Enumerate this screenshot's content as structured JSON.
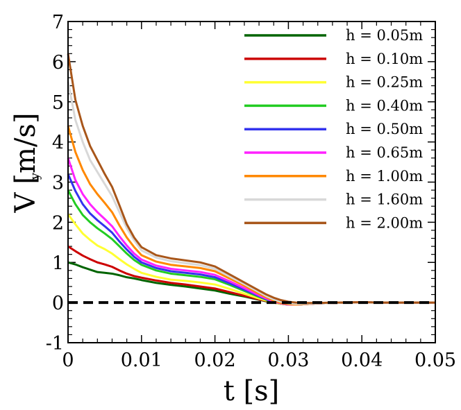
{
  "chart_data": {
    "type": "line",
    "title": "",
    "xlabel": "t [s]",
    "ylabel": {
      "main": "V",
      "subscript": "y",
      "unit": "[m/s]"
    },
    "xlim": [
      0,
      0.05
    ],
    "ylim": [
      -1,
      7
    ],
    "xticks": [
      0,
      0.01,
      0.02,
      0.03,
      0.04,
      0.05
    ],
    "xtick_labels": [
      "0",
      "0.01",
      "0.02",
      "0.03",
      "0.04",
      "0.05"
    ],
    "yticks": [
      -1,
      0,
      1,
      2,
      3,
      4,
      5,
      6,
      7
    ],
    "ytick_labels": [
      "-1",
      "0",
      "1",
      "2",
      "3",
      "4",
      "5",
      "6",
      "7"
    ],
    "grid": false,
    "legend_position": "top-right",
    "reference_line": {
      "y": 0,
      "style": "dashed",
      "color": "#000000"
    },
    "series": [
      {
        "name": "h = 0.05m",
        "color": "#006400",
        "x": [
          0,
          0.001,
          0.002,
          0.003,
          0.004,
          0.005,
          0.006,
          0.007,
          0.008,
          0.009,
          0.01,
          0.012,
          0.014,
          0.016,
          0.018,
          0.02,
          0.022,
          0.024,
          0.026,
          0.027,
          0.028,
          0.029,
          0.03,
          0.031,
          0.032,
          0.034,
          0.036,
          0.038,
          0.04,
          0.042,
          0.044,
          0.046,
          0.048,
          0.05
        ],
        "y": [
          1.0,
          0.95,
          0.88,
          0.82,
          0.76,
          0.74,
          0.72,
          0.68,
          0.63,
          0.6,
          0.56,
          0.49,
          0.44,
          0.4,
          0.35,
          0.3,
          0.22,
          0.15,
          0.07,
          0.03,
          0.0,
          -0.03,
          -0.05,
          -0.05,
          -0.04,
          -0.02,
          -0.01,
          0.0,
          0.01,
          0.0,
          0.0,
          0.0,
          0.0,
          0.0
        ]
      },
      {
        "name": "h = 0.10m",
        "color": "#cc0000",
        "x": [
          0,
          0.001,
          0.002,
          0.003,
          0.004,
          0.005,
          0.006,
          0.007,
          0.008,
          0.009,
          0.01,
          0.012,
          0.014,
          0.016,
          0.018,
          0.02,
          0.022,
          0.024,
          0.026,
          0.027,
          0.028,
          0.029,
          0.03,
          0.031,
          0.032,
          0.034,
          0.036,
          0.038,
          0.04,
          0.042,
          0.044,
          0.046,
          0.048,
          0.05
        ],
        "y": [
          1.4,
          1.28,
          1.17,
          1.08,
          1.0,
          0.95,
          0.89,
          0.8,
          0.72,
          0.66,
          0.62,
          0.55,
          0.49,
          0.45,
          0.4,
          0.35,
          0.26,
          0.17,
          0.08,
          0.04,
          0.0,
          -0.03,
          -0.05,
          -0.05,
          -0.04,
          -0.02,
          -0.01,
          0.0,
          0.01,
          0.0,
          0.0,
          0.0,
          0.0,
          0.0
        ]
      },
      {
        "name": "h = 0.25m",
        "color": "#ffff33",
        "x": [
          0,
          0.001,
          0.002,
          0.003,
          0.004,
          0.005,
          0.006,
          0.007,
          0.008,
          0.009,
          0.01,
          0.012,
          0.014,
          0.016,
          0.018,
          0.02,
          0.022,
          0.024,
          0.026,
          0.027,
          0.028,
          0.029,
          0.03,
          0.031,
          0.032,
          0.034,
          0.036,
          0.038,
          0.04,
          0.042,
          0.044,
          0.046,
          0.048,
          0.05
        ],
        "y": [
          2.2,
          1.95,
          1.72,
          1.56,
          1.42,
          1.33,
          1.22,
          1.08,
          0.95,
          0.84,
          0.74,
          0.64,
          0.57,
          0.54,
          0.5,
          0.45,
          0.34,
          0.22,
          0.1,
          0.05,
          0.0,
          -0.03,
          -0.05,
          -0.05,
          -0.04,
          -0.02,
          -0.01,
          0.0,
          0.01,
          0.0,
          0.0,
          0.0,
          0.0,
          0.0
        ]
      },
      {
        "name": "h = 0.40m",
        "color": "#22cc22",
        "x": [
          0,
          0.001,
          0.002,
          0.003,
          0.004,
          0.005,
          0.006,
          0.007,
          0.008,
          0.009,
          0.01,
          0.012,
          0.014,
          0.016,
          0.018,
          0.02,
          0.022,
          0.024,
          0.026,
          0.027,
          0.028,
          0.029,
          0.03,
          0.031,
          0.032,
          0.034,
          0.036,
          0.038,
          0.04,
          0.042,
          0.044,
          0.046,
          0.048,
          0.05
        ],
        "y": [
          2.8,
          2.45,
          2.18,
          2.0,
          1.85,
          1.72,
          1.58,
          1.4,
          1.22,
          1.06,
          0.94,
          0.8,
          0.72,
          0.68,
          0.64,
          0.58,
          0.44,
          0.29,
          0.14,
          0.07,
          0.02,
          -0.02,
          -0.05,
          -0.05,
          -0.04,
          -0.02,
          -0.01,
          0.0,
          0.01,
          0.0,
          0.0,
          0.0,
          0.0,
          0.0
        ]
      },
      {
        "name": "h = 0.50m",
        "color": "#3333ee",
        "x": [
          0,
          0.001,
          0.002,
          0.003,
          0.004,
          0.005,
          0.006,
          0.007,
          0.008,
          0.009,
          0.01,
          0.012,
          0.014,
          0.016,
          0.018,
          0.02,
          0.022,
          0.024,
          0.026,
          0.027,
          0.028,
          0.029,
          0.03,
          0.031,
          0.032,
          0.034,
          0.036,
          0.038,
          0.04,
          0.042,
          0.044,
          0.046,
          0.048,
          0.05
        ],
        "y": [
          3.2,
          2.78,
          2.45,
          2.22,
          2.05,
          1.9,
          1.74,
          1.52,
          1.32,
          1.14,
          1.0,
          0.86,
          0.78,
          0.74,
          0.7,
          0.63,
          0.48,
          0.32,
          0.16,
          0.08,
          0.02,
          -0.02,
          -0.05,
          -0.05,
          -0.04,
          -0.02,
          -0.01,
          0.0,
          0.01,
          0.0,
          0.0,
          0.0,
          0.0,
          0.0
        ]
      },
      {
        "name": "h = 0.65m",
        "color": "#ff22ff",
        "x": [
          0,
          0.001,
          0.002,
          0.003,
          0.004,
          0.005,
          0.006,
          0.007,
          0.008,
          0.009,
          0.01,
          0.012,
          0.014,
          0.016,
          0.018,
          0.02,
          0.022,
          0.024,
          0.026,
          0.027,
          0.028,
          0.029,
          0.03,
          0.031,
          0.032,
          0.034,
          0.036,
          0.038,
          0.04,
          0.042,
          0.044,
          0.046,
          0.048,
          0.05
        ],
        "y": [
          3.6,
          3.05,
          2.7,
          2.45,
          2.25,
          2.08,
          1.9,
          1.65,
          1.42,
          1.22,
          1.07,
          0.92,
          0.84,
          0.8,
          0.76,
          0.69,
          0.53,
          0.36,
          0.18,
          0.1,
          0.03,
          -0.02,
          -0.05,
          -0.05,
          -0.04,
          -0.02,
          -0.01,
          0.0,
          0.01,
          0.0,
          0.0,
          0.0,
          0.0,
          0.0
        ]
      },
      {
        "name": "h = 1.00m",
        "color": "#ff8800",
        "x": [
          0,
          0.001,
          0.002,
          0.003,
          0.004,
          0.005,
          0.006,
          0.007,
          0.008,
          0.009,
          0.01,
          0.012,
          0.014,
          0.016,
          0.018,
          0.02,
          0.022,
          0.024,
          0.026,
          0.027,
          0.028,
          0.029,
          0.03,
          0.031,
          0.032,
          0.034,
          0.036,
          0.038,
          0.04,
          0.042,
          0.044,
          0.046,
          0.048,
          0.05
        ],
        "y": [
          4.4,
          3.75,
          3.3,
          2.95,
          2.7,
          2.48,
          2.25,
          1.92,
          1.62,
          1.38,
          1.18,
          1.02,
          0.94,
          0.9,
          0.86,
          0.78,
          0.6,
          0.42,
          0.22,
          0.13,
          0.05,
          -0.01,
          -0.04,
          -0.05,
          -0.04,
          -0.02,
          -0.01,
          0.0,
          0.01,
          0.0,
          0.0,
          0.0,
          0.0,
          0.0
        ]
      },
      {
        "name": "h = 1.60m",
        "color": "#d8d8d8",
        "x": [
          0,
          0.001,
          0.002,
          0.003,
          0.004,
          0.005,
          0.006,
          0.007,
          0.008,
          0.009,
          0.01,
          0.012,
          0.014,
          0.016,
          0.018,
          0.02,
          0.022,
          0.024,
          0.026,
          0.027,
          0.028,
          0.029,
          0.03,
          0.031,
          0.032,
          0.034,
          0.036,
          0.038,
          0.04,
          0.042,
          0.044,
          0.046,
          0.048,
          0.05
        ],
        "y": [
          5.5,
          4.55,
          4.0,
          3.55,
          3.25,
          2.95,
          2.65,
          2.25,
          1.85,
          1.55,
          1.3,
          1.12,
          1.03,
          0.98,
          0.93,
          0.84,
          0.65,
          0.46,
          0.26,
          0.16,
          0.08,
          0.02,
          -0.02,
          -0.03,
          -0.03,
          -0.02,
          -0.01,
          0.0,
          0.01,
          0.0,
          0.0,
          0.0,
          0.0,
          0.0
        ]
      },
      {
        "name": "h = 2.00m",
        "color": "#a8561a",
        "x": [
          0,
          0.001,
          0.002,
          0.003,
          0.004,
          0.005,
          0.006,
          0.007,
          0.008,
          0.009,
          0.01,
          0.012,
          0.014,
          0.016,
          0.018,
          0.02,
          0.022,
          0.024,
          0.026,
          0.027,
          0.028,
          0.029,
          0.03,
          0.031,
          0.032,
          0.034,
          0.036,
          0.038,
          0.04,
          0.042,
          0.044,
          0.046,
          0.048,
          0.05
        ],
        "y": [
          6.2,
          5.05,
          4.4,
          3.9,
          3.55,
          3.2,
          2.88,
          2.42,
          1.95,
          1.62,
          1.38,
          1.18,
          1.1,
          1.05,
          1.0,
          0.9,
          0.7,
          0.5,
          0.3,
          0.2,
          0.12,
          0.06,
          0.02,
          0.0,
          -0.01,
          -0.01,
          0.0,
          0.0,
          0.01,
          0.0,
          0.0,
          0.0,
          0.0,
          0.0
        ]
      }
    ]
  }
}
